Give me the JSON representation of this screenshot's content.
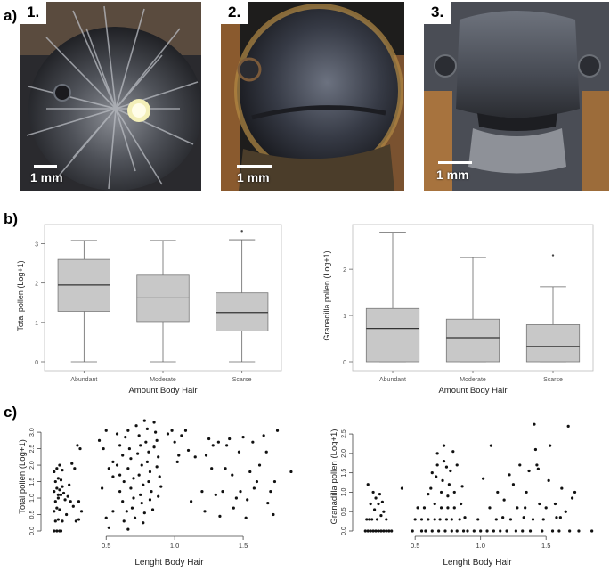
{
  "panel_labels": {
    "a": "a)",
    "b": "b)",
    "c": "c)"
  },
  "photos": [
    {
      "number": "1.",
      "scale": "1 mm"
    },
    {
      "number": "2.",
      "scale": "1 mm"
    },
    {
      "number": "3.",
      "scale": "1 mm"
    }
  ],
  "chart_data": [
    {
      "type": "box",
      "ylabel": "Total pollen (Log+1)",
      "xlabel": "Amount Body Hair",
      "categories": [
        "Abundant",
        "Moderate",
        "Scarse"
      ],
      "ylim": [
        0,
        3.35
      ],
      "yticks": [
        "0",
        "1",
        "2",
        "3"
      ],
      "boxes": [
        {
          "min": 0.0,
          "q1": 1.28,
          "median": 1.95,
          "q3": 2.6,
          "max": 3.08,
          "outliers": []
        },
        {
          "min": 0.0,
          "q1": 1.02,
          "median": 1.62,
          "q3": 2.2,
          "max": 3.08,
          "outliers": []
        },
        {
          "min": 0.0,
          "q1": 0.78,
          "median": 1.25,
          "q3": 1.75,
          "max": 3.1,
          "outliers": [
            3.32
          ]
        }
      ]
    },
    {
      "type": "box",
      "ylabel": "Granadilla pollen (Log+1)",
      "xlabel": "Amount Body Hair",
      "categories": [
        "Abundant",
        "Moderate",
        "Scarse"
      ],
      "ylim": [
        0,
        2.85
      ],
      "yticks": [
        "0",
        "1",
        "2"
      ],
      "boxes": [
        {
          "min": 0.0,
          "q1": 0.0,
          "median": 0.72,
          "q3": 1.15,
          "max": 2.8,
          "outliers": []
        },
        {
          "min": 0.0,
          "q1": 0.0,
          "median": 0.52,
          "q3": 0.92,
          "max": 2.25,
          "outliers": []
        },
        {
          "min": 0.0,
          "q1": 0.0,
          "median": 0.33,
          "q3": 0.8,
          "max": 1.62,
          "outliers": [
            2.3
          ]
        }
      ]
    },
    {
      "type": "scatter",
      "ylabel": "Total pollen (Log+1)",
      "xlabel": "Lenght Body Hair",
      "xlim": [
        0.05,
        1.87
      ],
      "ylim": [
        0.0,
        3.3
      ],
      "xticks": [
        0.5,
        1.0,
        1.5
      ],
      "xtick_labels": [
        "0.5",
        "1.0",
        "1.5"
      ],
      "yticks": [
        0.0,
        0.5,
        1.0,
        1.5,
        2.0,
        2.5,
        3.0
      ],
      "ytick_labels": [
        "0.0",
        "0.5",
        "1.0",
        "1.5",
        "2.0",
        "2.5",
        "3.0"
      ],
      "points": [
        [
          0.12,
          0.0
        ],
        [
          0.14,
          0.0
        ],
        [
          0.16,
          0.0
        ],
        [
          0.17,
          0.0
        ],
        [
          0.13,
          0.3
        ],
        [
          0.15,
          0.35
        ],
        [
          0.18,
          0.3
        ],
        [
          0.12,
          0.6
        ],
        [
          0.14,
          0.7
        ],
        [
          0.16,
          0.65
        ],
        [
          0.13,
          0.9
        ],
        [
          0.15,
          1.0
        ],
        [
          0.17,
          1.1
        ],
        [
          0.12,
          1.2
        ],
        [
          0.14,
          1.3
        ],
        [
          0.16,
          1.25
        ],
        [
          0.18,
          1.35
        ],
        [
          0.13,
          1.5
        ],
        [
          0.15,
          1.6
        ],
        [
          0.17,
          1.55
        ],
        [
          0.12,
          1.8
        ],
        [
          0.14,
          1.9
        ],
        [
          0.16,
          2.0
        ],
        [
          0.18,
          1.85
        ],
        [
          0.15,
          1.1
        ],
        [
          0.19,
          1.15
        ],
        [
          0.2,
          0.95
        ],
        [
          0.22,
          1.05
        ],
        [
          0.24,
          0.9
        ],
        [
          0.26,
          0.75
        ],
        [
          0.28,
          0.3
        ],
        [
          0.3,
          0.35
        ],
        [
          0.32,
          0.6
        ],
        [
          0.3,
          0.9
        ],
        [
          0.27,
          1.9
        ],
        [
          0.25,
          2.05
        ],
        [
          0.29,
          2.6
        ],
        [
          0.31,
          2.5
        ],
        [
          0.23,
          1.4
        ],
        [
          0.21,
          0.5
        ],
        [
          0.45,
          2.75
        ],
        [
          0.5,
          3.05
        ],
        [
          0.48,
          2.5
        ],
        [
          0.52,
          1.9
        ],
        [
          0.55,
          2.1
        ],
        [
          0.55,
          1.65
        ],
        [
          0.47,
          1.3
        ],
        [
          0.5,
          0.4
        ],
        [
          0.52,
          0.1
        ],
        [
          0.55,
          0.6
        ],
        [
          0.58,
          2.95
        ],
        [
          0.6,
          2.6
        ],
        [
          0.62,
          2.3
        ],
        [
          0.58,
          2.0
        ],
        [
          0.6,
          1.7
        ],
        [
          0.63,
          1.5
        ],
        [
          0.6,
          1.2
        ],
        [
          0.62,
          0.9
        ],
        [
          0.65,
          0.6
        ],
        [
          0.63,
          0.3
        ],
        [
          0.66,
          0.05
        ],
        [
          0.64,
          2.85
        ],
        [
          0.67,
          2.5
        ],
        [
          0.68,
          2.2
        ],
        [
          0.66,
          1.9
        ],
        [
          0.7,
          1.6
        ],
        [
          0.68,
          1.3
        ],
        [
          0.7,
          1.0
        ],
        [
          0.69,
          0.7
        ],
        [
          0.71,
          0.4
        ],
        [
          0.72,
          3.2
        ],
        [
          0.74,
          2.9
        ],
        [
          0.75,
          2.6
        ],
        [
          0.73,
          2.35
        ],
        [
          0.76,
          2.0
        ],
        [
          0.74,
          1.7
        ],
        [
          0.77,
          1.4
        ],
        [
          0.75,
          1.1
        ],
        [
          0.76,
          0.85
        ],
        [
          0.78,
          0.55
        ],
        [
          0.77,
          0.25
        ],
        [
          0.8,
          3.1
        ],
        [
          0.79,
          2.7
        ],
        [
          0.81,
          2.4
        ],
        [
          0.8,
          2.1
        ],
        [
          0.82,
          1.8
        ],
        [
          0.81,
          1.5
        ],
        [
          0.83,
          1.2
        ],
        [
          0.82,
          0.95
        ],
        [
          0.84,
          0.65
        ],
        [
          0.85,
          3.3
        ],
        [
          0.86,
          3.0
        ],
        [
          0.87,
          2.75
        ],
        [
          0.85,
          2.55
        ],
        [
          0.88,
          2.25
        ],
        [
          0.87,
          1.95
        ],
        [
          0.89,
          1.65
        ],
        [
          0.9,
          1.35
        ],
        [
          0.88,
          1.05
        ],
        [
          0.78,
          3.35
        ],
        [
          0.66,
          3.05
        ],
        [
          0.95,
          2.95
        ],
        [
          0.98,
          3.05
        ],
        [
          1.0,
          2.7
        ],
        [
          1.03,
          2.3
        ],
        [
          1.05,
          2.9
        ],
        [
          1.08,
          3.05
        ],
        [
          1.1,
          2.45
        ],
        [
          1.12,
          0.9
        ],
        [
          1.15,
          2.25
        ],
        [
          1.02,
          2.1
        ],
        [
          1.2,
          1.2
        ],
        [
          1.23,
          2.3
        ],
        [
          1.25,
          2.8
        ],
        [
          1.27,
          1.9
        ],
        [
          1.3,
          1.1
        ],
        [
          1.28,
          2.6
        ],
        [
          1.32,
          2.7
        ],
        [
          1.35,
          1.2
        ],
        [
          1.37,
          1.9
        ],
        [
          1.4,
          2.8
        ],
        [
          1.38,
          2.6
        ],
        [
          1.42,
          1.7
        ],
        [
          1.45,
          1.0
        ],
        [
          1.43,
          0.7
        ],
        [
          1.47,
          2.4
        ],
        [
          1.5,
          2.85
        ],
        [
          1.48,
          1.2
        ],
        [
          1.52,
          0.4
        ],
        [
          1.55,
          1.8
        ],
        [
          1.57,
          2.7
        ],
        [
          1.6,
          1.5
        ],
        [
          1.62,
          2.0
        ],
        [
          1.58,
          1.3
        ],
        [
          1.65,
          2.9
        ],
        [
          1.67,
          2.4
        ],
        [
          1.7,
          1.2
        ],
        [
          1.72,
          0.5
        ],
        [
          1.68,
          0.85
        ],
        [
          1.75,
          3.05
        ],
        [
          1.73,
          1.5
        ],
        [
          1.85,
          1.8
        ],
        [
          1.22,
          0.6
        ],
        [
          1.33,
          0.45
        ],
        [
          1.53,
          0.95
        ]
      ]
    },
    {
      "type": "scatter",
      "ylabel": "Granadilla pollen (Log+1)",
      "xlabel": "Lenght Body Hair",
      "xlim": [
        0.05,
        1.9
      ],
      "ylim": [
        0.0,
        2.8
      ],
      "xticks": [
        0.5,
        1.0,
        1.5
      ],
      "xtick_labels": [
        "0.5",
        "1.0",
        "1.5"
      ],
      "yticks": [
        0.0,
        0.5,
        1.0,
        1.5,
        2.0,
        2.5
      ],
      "ytick_labels": [
        "0.0",
        "0.5",
        "1.0",
        "1.5",
        "2.0",
        "2.5"
      ],
      "points": [
        [
          0.12,
          0.0
        ],
        [
          0.14,
          0.0
        ],
        [
          0.16,
          0.0
        ],
        [
          0.18,
          0.0
        ],
        [
          0.2,
          0.0
        ],
        [
          0.22,
          0.0
        ],
        [
          0.24,
          0.0
        ],
        [
          0.26,
          0.0
        ],
        [
          0.28,
          0.0
        ],
        [
          0.3,
          0.0
        ],
        [
          0.32,
          0.0
        ],
        [
          0.13,
          0.3
        ],
        [
          0.15,
          0.3
        ],
        [
          0.17,
          0.3
        ],
        [
          0.19,
          0.55
        ],
        [
          0.21,
          0.3
        ],
        [
          0.16,
          0.7
        ],
        [
          0.18,
          1.0
        ],
        [
          0.14,
          1.2
        ],
        [
          0.2,
          0.85
        ],
        [
          0.22,
          0.7
        ],
        [
          0.24,
          0.4
        ],
        [
          0.23,
          0.95
        ],
        [
          0.26,
          0.5
        ],
        [
          0.28,
          0.3
        ],
        [
          0.25,
          0.75
        ],
        [
          0.4,
          1.1
        ],
        [
          0.48,
          0.0
        ],
        [
          0.5,
          0.3
        ],
        [
          0.52,
          0.6
        ],
        [
          0.55,
          0.0
        ],
        [
          0.55,
          0.3
        ],
        [
          0.57,
          0.6
        ],
        [
          0.58,
          0.0
        ],
        [
          0.6,
          0.3
        ],
        [
          0.6,
          0.95
        ],
        [
          0.62,
          1.1
        ],
        [
          0.63,
          0.0
        ],
        [
          0.65,
          0.3
        ],
        [
          0.65,
          0.7
        ],
        [
          0.66,
          1.4
        ],
        [
          0.67,
          1.7
        ],
        [
          0.68,
          0.0
        ],
        [
          0.69,
          0.3
        ],
        [
          0.7,
          0.6
        ],
        [
          0.7,
          1.0
        ],
        [
          0.71,
          1.3
        ],
        [
          0.72,
          1.8
        ],
        [
          0.73,
          0.0
        ],
        [
          0.74,
          0.3
        ],
        [
          0.75,
          0.6
        ],
        [
          0.75,
          0.9
        ],
        [
          0.76,
          1.2
        ],
        [
          0.77,
          1.55
        ],
        [
          0.78,
          0.0
        ],
        [
          0.78,
          0.3
        ],
        [
          0.8,
          0.6
        ],
        [
          0.8,
          1.0
        ],
        [
          0.82,
          0.0
        ],
        [
          0.82,
          1.7
        ],
        [
          0.84,
          0.3
        ],
        [
          0.85,
          0.7
        ],
        [
          0.87,
          0.0
        ],
        [
          0.88,
          0.35
        ],
        [
          0.9,
          0.0
        ],
        [
          0.67,
          2.0
        ],
        [
          0.72,
          2.2
        ],
        [
          0.74,
          1.65
        ],
        [
          0.79,
          2.05
        ],
        [
          0.63,
          1.5
        ],
        [
          0.86,
          1.15
        ],
        [
          0.95,
          0.0
        ],
        [
          0.98,
          0.3
        ],
        [
          1.0,
          0.0
        ],
        [
          1.02,
          1.35
        ],
        [
          1.05,
          0.0
        ],
        [
          1.07,
          0.6
        ],
        [
          1.08,
          2.2
        ],
        [
          1.1,
          0.0
        ],
        [
          1.12,
          0.3
        ],
        [
          1.13,
          1.0
        ],
        [
          1.15,
          0.0
        ],
        [
          1.17,
          0.35
        ],
        [
          1.18,
          0.8
        ],
        [
          1.2,
          0.0
        ],
        [
          1.23,
          0.3
        ],
        [
          1.25,
          1.2
        ],
        [
          1.27,
          0.0
        ],
        [
          1.28,
          0.6
        ],
        [
          1.3,
          1.7
        ],
        [
          1.32,
          0.0
        ],
        [
          1.33,
          0.35
        ],
        [
          1.35,
          1.0
        ],
        [
          1.37,
          1.55
        ],
        [
          1.38,
          0.0
        ],
        [
          1.4,
          0.3
        ],
        [
          1.41,
          2.75
        ],
        [
          1.42,
          2.1
        ],
        [
          1.43,
          1.7
        ],
        [
          1.45,
          0.7
        ],
        [
          1.47,
          0.0
        ],
        [
          1.48,
          0.3
        ],
        [
          1.5,
          0.6
        ],
        [
          1.52,
          1.3
        ],
        [
          1.53,
          2.2
        ],
        [
          1.55,
          0.0
        ],
        [
          1.57,
          0.7
        ],
        [
          1.58,
          0.35
        ],
        [
          1.6,
          0.0
        ],
        [
          1.62,
          1.1
        ],
        [
          1.65,
          0.5
        ],
        [
          1.67,
          2.7
        ],
        [
          1.68,
          0.0
        ],
        [
          1.7,
          0.85
        ],
        [
          1.72,
          1.0
        ],
        [
          1.75,
          0.0
        ],
        [
          1.85,
          0.0
        ],
        [
          1.22,
          1.45
        ],
        [
          1.34,
          0.6
        ],
        [
          1.44,
          1.6
        ],
        [
          1.61,
          0.35
        ]
      ]
    }
  ]
}
